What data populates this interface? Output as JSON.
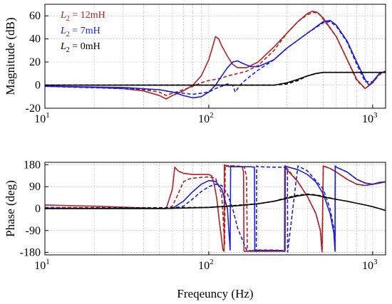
{
  "chart_data": [
    {
      "type": "line",
      "xlabel": "",
      "ylabel": "Magnitude (dB)",
      "xscale": "log",
      "xlim": [
        10,
        1200
      ],
      "ylim": [
        -20,
        70
      ],
      "yticks": [
        -20,
        0,
        20,
        40,
        60
      ],
      "xticks": [
        {
          "value": 10,
          "base": "10",
          "exp": "1"
        },
        {
          "value": 100,
          "base": "10",
          "exp": "2"
        },
        {
          "value": 1000,
          "base": "10",
          "exp": "3"
        }
      ],
      "grid": true,
      "legend": {
        "placement": "top-left",
        "entries": [
          {
            "prefix": "L",
            "sub": "2",
            "text": " = 12mH",
            "color": "#b22222"
          },
          {
            "prefix": "L",
            "sub": "2",
            "text": " = 7mH",
            "color": "#1f1fd6"
          },
          {
            "prefix": "L",
            "sub": "2",
            "text": " = 0mH",
            "color": "#000000"
          }
        ]
      },
      "series": [
        {
          "name": "L2 = 12mH",
          "style": "solid",
          "color": "#b22222",
          "x": [
            10,
            20,
            30,
            40,
            50,
            55,
            60,
            70,
            80,
            90,
            100,
            105,
            110,
            115,
            120,
            130,
            140,
            150,
            170,
            200,
            250,
            300,
            350,
            400,
            430,
            460,
            500,
            600,
            700,
            800,
            900,
            1000,
            1100,
            1200
          ],
          "y": [
            -1,
            -2,
            -3,
            -5,
            -9,
            -12,
            -9,
            -5,
            0,
            8,
            22,
            32,
            42,
            40,
            34,
            25,
            18,
            15,
            15,
            20,
            33,
            45,
            55,
            62,
            64,
            63,
            58,
            42,
            22,
            5,
            -3,
            2,
            10,
            12
          ]
        },
        {
          "name": "L2 = 12mH (dashed)",
          "style": "dashed",
          "color": "#b22222",
          "x": [
            10,
            20,
            30,
            40,
            50,
            55,
            60,
            70,
            80,
            90,
            100,
            110,
            120,
            130,
            150,
            170,
            200,
            250,
            300,
            350,
            400,
            440,
            470,
            500,
            600,
            700,
            800,
            900,
            1000,
            1100,
            1200
          ],
          "y": [
            -1,
            -2,
            -3,
            -4,
            -6,
            -9,
            -7,
            -4,
            -1,
            2,
            4,
            5,
            6,
            8,
            10,
            12,
            17,
            30,
            45,
            55,
            61,
            63,
            62,
            57,
            42,
            22,
            4,
            -3,
            2,
            9,
            12
          ]
        },
        {
          "name": "L2 = 7mH",
          "style": "solid",
          "color": "#1f1fd6",
          "x": [
            10,
            30,
            50,
            60,
            70,
            80,
            90,
            100,
            110,
            120,
            130,
            140,
            150,
            160,
            180,
            200,
            250,
            300,
            400,
            500,
            550,
            600,
            700,
            800,
            900,
            950,
            1000,
            1100,
            1200
          ],
          "y": [
            -1,
            -2,
            -4,
            -6,
            -9,
            -11,
            -10,
            -6,
            0,
            8,
            15,
            20,
            21,
            19,
            16,
            16,
            22,
            32,
            45,
            55,
            56,
            52,
            38,
            20,
            5,
            0,
            3,
            10,
            12
          ]
        },
        {
          "name": "L2 = 7mH (dashed)",
          "style": "dashed",
          "color": "#1f1fd6",
          "x": [
            10,
            50,
            60,
            70,
            80,
            90,
            100,
            110,
            120,
            130,
            140,
            145,
            150,
            160,
            180,
            200,
            250,
            300,
            400,
            500,
            550,
            600,
            700,
            800,
            900,
            1000,
            1100,
            1200
          ],
          "y": [
            -1,
            -4,
            -6,
            -7,
            -8,
            -7,
            -6,
            -3,
            -1,
            1,
            0,
            -6,
            -3,
            2,
            8,
            13,
            22,
            32,
            45,
            54,
            55,
            51,
            37,
            18,
            3,
            3,
            10,
            12
          ]
        },
        {
          "name": "L2 = 0mH",
          "style": "solid",
          "color": "#000000",
          "x": [
            10,
            50,
            100,
            150,
            200,
            250,
            300,
            350,
            400,
            450,
            500,
            600,
            800,
            1000,
            1200
          ],
          "y": [
            0,
            0,
            0,
            0,
            0,
            0,
            2,
            5,
            8,
            10,
            11,
            11,
            11,
            11,
            11
          ]
        },
        {
          "name": "L2 = 0mH (dashed)",
          "style": "dashed",
          "color": "#000000",
          "x": [
            10,
            100,
            200,
            250,
            300,
            350,
            400,
            450,
            500,
            600,
            800,
            1000,
            1200
          ],
          "y": [
            0,
            0,
            0,
            0,
            1,
            4,
            8,
            10,
            11,
            11,
            11,
            11,
            11
          ]
        }
      ]
    },
    {
      "type": "line",
      "xlabel": "Freqeuncy (Hz)",
      "ylabel": "Phase (deg)",
      "xscale": "log",
      "xlim": [
        10,
        1200
      ],
      "ylim": [
        -190,
        190
      ],
      "yticks": [
        -180,
        -90,
        0,
        90,
        180
      ],
      "xticks": [
        {
          "value": 10,
          "base": "10",
          "exp": "1"
        },
        {
          "value": 100,
          "base": "10",
          "exp": "2"
        },
        {
          "value": 1000,
          "base": "10",
          "exp": "3"
        }
      ],
      "grid": true,
      "series": [
        {
          "name": "L2 = 12mH",
          "style": "solid",
          "color": "#b22222",
          "x": [
            10,
            20,
            40,
            55,
            60,
            62,
            65,
            70,
            80,
            90,
            100,
            104,
            108,
            112,
            116,
            120,
            122,
            124,
            124.5,
            126,
            135,
            150,
            160,
            163,
            164,
            164.5,
            170,
            200,
            250,
            280,
            290,
            291,
            292,
            300,
            350,
            400,
            450,
            480,
            490,
            491,
            500,
            550,
            600,
            700,
            800,
            900,
            1000,
            1100,
            1200
          ],
          "y": [
            15,
            10,
            3,
            0,
            80,
            170,
            155,
            145,
            140,
            140,
            140,
            135,
            100,
            40,
            -50,
            -130,
            -170,
            -175,
            180,
            175,
            172,
            172,
            172,
            150,
            -170,
            -175,
            -175,
            -175,
            -175,
            -175,
            -175,
            175,
            172,
            160,
            110,
            50,
            -20,
            -90,
            -170,
            -175,
            175,
            165,
            150,
            120,
            100,
            95,
            100,
            108,
            110
          ]
        },
        {
          "name": "L2 = 12mH (dashed)",
          "style": "dashed",
          "color": "#b22222",
          "x": [
            10,
            20,
            40,
            55,
            60,
            65,
            70,
            75,
            80,
            90,
            100,
            110,
            120,
            125,
            126,
            130,
            150,
            165,
            170,
            172,
            172.5,
            180,
            200,
            250,
            280,
            290,
            292,
            293,
            300,
            350,
            400,
            450,
            480,
            490,
            492,
            500,
            550,
            600,
            700,
            800,
            900,
            1000,
            1100,
            1200
          ],
          "y": [
            5,
            4,
            2,
            0,
            10,
            60,
            110,
            120,
            125,
            128,
            130,
            125,
            60,
            -150,
            178,
            176,
            175,
            170,
            130,
            -170,
            -175,
            -172,
            -170,
            -170,
            -172,
            -175,
            -175,
            175,
            165,
            110,
            50,
            -20,
            -90,
            -170,
            -178,
            175,
            165,
            150,
            120,
            100,
            95,
            100,
            108,
            110
          ]
        },
        {
          "name": "L2 = 7mH",
          "style": "solid",
          "color": "#1f1fd6",
          "x": [
            10,
            40,
            60,
            70,
            80,
            90,
            100,
            110,
            120,
            130,
            135,
            136,
            140,
            160,
            180,
            190,
            191,
            200,
            250,
            280,
            290,
            292,
            293,
            300,
            350,
            400,
            450,
            500,
            550,
            580,
            590,
            591,
            600,
            700,
            800,
            900,
            1000,
            1100,
            1200
          ],
          "y": [
            2,
            1,
            1,
            30,
            70,
            100,
            115,
            112,
            80,
            0,
            -170,
            175,
            172,
            172,
            172,
            170,
            -170,
            -172,
            -172,
            -172,
            -175,
            -175,
            175,
            172,
            160,
            140,
            110,
            60,
            -20,
            -100,
            -175,
            175,
            170,
            150,
            120,
            105,
            100,
            105,
            110
          ]
        },
        {
          "name": "L2 = 7mH (dashed)",
          "style": "dashed",
          "color": "#1f1fd6",
          "x": [
            10,
            40,
            60,
            70,
            80,
            90,
            100,
            110,
            120,
            130,
            140,
            150,
            170,
            190,
            195,
            196,
            200,
            250,
            290,
            300,
            302,
            303,
            350,
            400,
            500,
            550,
            580,
            590,
            591,
            600,
            700,
            800,
            900,
            1000,
            1100,
            1200
          ],
          "y": [
            1,
            1,
            1,
            10,
            40,
            70,
            90,
            100,
            95,
            60,
            0,
            -80,
            -170,
            -175,
            -175,
            175,
            172,
            170,
            170,
            160,
            150,
            -178,
            175,
            155,
            80,
            0,
            -80,
            -170,
            175,
            170,
            150,
            120,
            105,
            100,
            105,
            110
          ]
        },
        {
          "name": "L2 = 0mH",
          "style": "solid",
          "color": "#000000",
          "x": [
            10,
            50,
            100,
            150,
            200,
            250,
            300,
            350,
            400,
            450,
            500,
            600,
            700,
            800,
            900,
            1000,
            1100,
            1200
          ],
          "y": [
            0,
            0,
            5,
            12,
            20,
            30,
            42,
            52,
            58,
            55,
            48,
            38,
            30,
            22,
            15,
            8,
            0,
            -8
          ]
        },
        {
          "name": "L2 = 0mH (dashed)",
          "style": "dashed",
          "color": "#000000",
          "x": [
            10,
            100,
            200,
            250,
            300,
            350,
            400,
            450,
            500,
            600
          ],
          "y": [
            0,
            5,
            20,
            30,
            45,
            55,
            60,
            56,
            50,
            38
          ]
        }
      ]
    }
  ]
}
